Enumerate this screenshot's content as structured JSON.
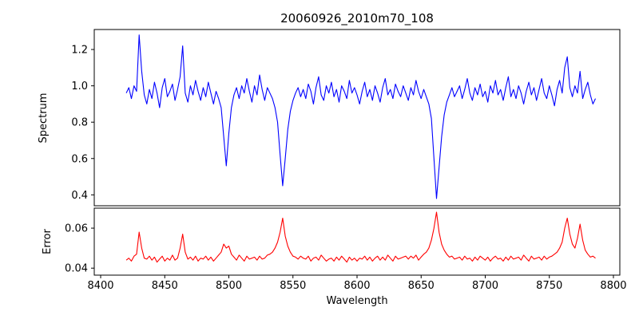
{
  "chart_data": {
    "type": "line",
    "title": "20060926_2010m70_108",
    "xlabel": "Wavelength",
    "xlim": [
      8395,
      8805
    ],
    "x_tick_values": [
      8400,
      8450,
      8500,
      8550,
      8600,
      8650,
      8700,
      8750,
      8800
    ],
    "x_tick_labels": [
      "8400",
      "8450",
      "8500",
      "8550",
      "8600",
      "8650",
      "8700",
      "8750",
      "8800"
    ],
    "x_start": 8420,
    "x_step": 2,
    "grid": false,
    "legend": "none",
    "subplots": [
      {
        "name": "spectrum",
        "ylabel": "Spectrum",
        "ylim": [
          0.34,
          1.31
        ],
        "y_tick_values": [
          0.4,
          0.6,
          0.8,
          1.0,
          1.2
        ],
        "y_tick_labels": [
          "0.4",
          "0.6",
          "0.8",
          "1.0",
          "1.2"
        ],
        "line_color": "#0000ff",
        "values": [
          0.96,
          0.99,
          0.93,
          1.0,
          0.97,
          1.28,
          1.08,
          0.95,
          0.9,
          0.98,
          0.93,
          1.02,
          0.96,
          0.88,
          0.99,
          1.04,
          0.94,
          0.97,
          1.01,
          0.92,
          0.98,
          1.05,
          1.22,
          0.96,
          0.91,
          1.0,
          0.95,
          1.03,
          0.97,
          0.92,
          0.99,
          0.94,
          1.02,
          0.96,
          0.9,
          0.97,
          0.93,
          0.88,
          0.72,
          0.56,
          0.74,
          0.88,
          0.95,
          0.99,
          0.93,
          1.0,
          0.96,
          1.04,
          0.97,
          0.91,
          1.0,
          0.95,
          1.06,
          0.98,
          0.92,
          0.99,
          0.96,
          0.93,
          0.88,
          0.8,
          0.62,
          0.45,
          0.6,
          0.76,
          0.86,
          0.92,
          0.96,
          0.99,
          0.94,
          0.98,
          0.93,
          1.01,
          0.97,
          0.9,
          0.99,
          1.05,
          0.95,
          0.92,
          1.0,
          0.96,
          1.02,
          0.94,
          0.98,
          0.91,
          1.0,
          0.97,
          0.93,
          1.03,
          0.96,
          0.99,
          0.95,
          0.9,
          0.97,
          1.02,
          0.94,
          0.98,
          0.92,
          1.0,
          0.96,
          0.91,
          0.99,
          1.04,
          0.95,
          0.98,
          0.93,
          1.01,
          0.97,
          0.94,
          1.0,
          0.96,
          0.92,
          0.99,
          0.95,
          1.03,
          0.97,
          0.93,
          0.98,
          0.94,
          0.9,
          0.82,
          0.6,
          0.38,
          0.55,
          0.72,
          0.84,
          0.91,
          0.95,
          0.99,
          0.94,
          0.97,
          1.0,
          0.93,
          0.98,
          1.04,
          0.96,
          0.92,
          0.99,
          0.95,
          1.01,
          0.94,
          0.97,
          0.91,
          1.0,
          0.96,
          1.03,
          0.95,
          0.98,
          0.92,
          0.99,
          1.05,
          0.94,
          0.98,
          0.93,
          1.0,
          0.96,
          0.9,
          0.97,
          1.02,
          0.95,
          0.99,
          0.92,
          0.98,
          1.04,
          0.96,
          0.93,
          1.0,
          0.95,
          0.89,
          0.98,
          1.03,
          0.96,
          1.1,
          1.16,
          0.99,
          0.94,
          1.0,
          0.96,
          1.08,
          0.93,
          0.98,
          1.02,
          0.95,
          0.9,
          0.93
        ]
      },
      {
        "name": "error",
        "ylabel": "Error",
        "ylim": [
          0.0365,
          0.07
        ],
        "y_tick_values": [
          0.04,
          0.06
        ],
        "y_tick_labels": [
          "0.04",
          "0.06"
        ],
        "line_color": "#ff0000",
        "values": [
          0.044,
          0.045,
          0.0435,
          0.046,
          0.047,
          0.058,
          0.05,
          0.045,
          0.0445,
          0.046,
          0.044,
          0.0455,
          0.043,
          0.0445,
          0.046,
          0.0435,
          0.045,
          0.044,
          0.0465,
          0.044,
          0.045,
          0.05,
          0.057,
          0.048,
          0.0445,
          0.0455,
          0.044,
          0.046,
          0.0435,
          0.045,
          0.0445,
          0.046,
          0.044,
          0.0455,
          0.0435,
          0.045,
          0.0465,
          0.048,
          0.052,
          0.05,
          0.051,
          0.047,
          0.0455,
          0.044,
          0.0465,
          0.045,
          0.0435,
          0.046,
          0.0445,
          0.045,
          0.0455,
          0.044,
          0.046,
          0.0445,
          0.045,
          0.0465,
          0.047,
          0.048,
          0.05,
          0.053,
          0.058,
          0.065,
          0.056,
          0.051,
          0.048,
          0.046,
          0.0455,
          0.0445,
          0.046,
          0.045,
          0.0445,
          0.046,
          0.0435,
          0.045,
          0.0455,
          0.044,
          0.0465,
          0.045,
          0.0435,
          0.0445,
          0.045,
          0.0435,
          0.0455,
          0.044,
          0.046,
          0.0445,
          0.043,
          0.0455,
          0.044,
          0.045,
          0.0435,
          0.045,
          0.0445,
          0.046,
          0.044,
          0.0455,
          0.0435,
          0.045,
          0.046,
          0.044,
          0.0455,
          0.044,
          0.0465,
          0.045,
          0.0435,
          0.046,
          0.0445,
          0.045,
          0.0455,
          0.046,
          0.0445,
          0.046,
          0.045,
          0.0465,
          0.044,
          0.0455,
          0.047,
          0.048,
          0.05,
          0.054,
          0.06,
          0.068,
          0.058,
          0.052,
          0.049,
          0.047,
          0.0455,
          0.046,
          0.0445,
          0.045,
          0.0455,
          0.044,
          0.046,
          0.0445,
          0.045,
          0.0435,
          0.0455,
          0.044,
          0.046,
          0.045,
          0.044,
          0.0455,
          0.0435,
          0.045,
          0.046,
          0.0445,
          0.045,
          0.0435,
          0.0455,
          0.044,
          0.046,
          0.0445,
          0.045,
          0.0455,
          0.044,
          0.0465,
          0.045,
          0.0435,
          0.046,
          0.0445,
          0.045,
          0.0455,
          0.044,
          0.046,
          0.0445,
          0.0455,
          0.046,
          0.047,
          0.048,
          0.05,
          0.053,
          0.06,
          0.065,
          0.057,
          0.052,
          0.05,
          0.055,
          0.062,
          0.054,
          0.049,
          0.047,
          0.0455,
          0.046,
          0.045
        ]
      }
    ]
  }
}
